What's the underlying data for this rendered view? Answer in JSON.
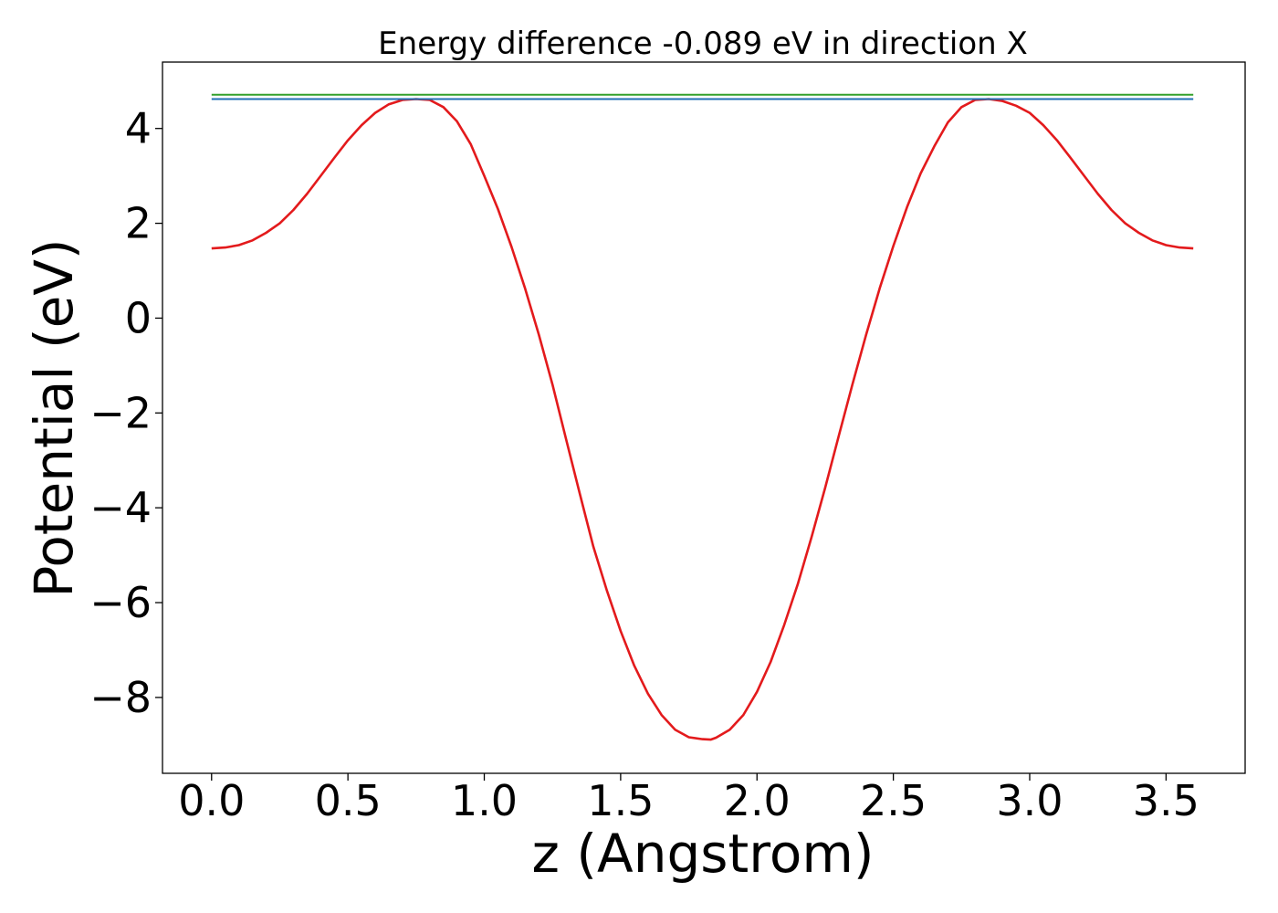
{
  "chart_data": {
    "type": "line",
    "title": "Energy difference -0.089 eV in direction X",
    "xlabel": "z (Angstrom)",
    "ylabel": "Potential (eV)",
    "xlim": [
      -0.18,
      3.79
    ],
    "ylim": [
      -9.6,
      5.4
    ],
    "xticks": [
      0.0,
      0.5,
      1.0,
      1.5,
      2.0,
      2.5,
      3.0,
      3.5
    ],
    "xtick_labels": [
      "0.0",
      "0.5",
      "1.0",
      "1.5",
      "2.0",
      "2.5",
      "3.0",
      "3.5"
    ],
    "yticks": [
      4,
      2,
      0,
      -2,
      -4,
      -6,
      -8
    ],
    "ytick_labels": [
      "4",
      "2",
      "0",
      "−2",
      "−4",
      "−6",
      "−8"
    ],
    "grid": false,
    "legend": "none",
    "series": [
      {
        "color": "#e31a1c",
        "x": [
          0.0,
          0.05,
          0.1,
          0.15,
          0.2,
          0.25,
          0.3,
          0.35,
          0.4,
          0.45,
          0.5,
          0.55,
          0.6,
          0.65,
          0.7,
          0.75,
          0.8,
          0.85,
          0.9,
          0.95,
          1.0,
          1.05,
          1.1,
          1.15,
          1.2,
          1.25,
          1.3,
          1.35,
          1.4,
          1.45,
          1.5,
          1.55,
          1.6,
          1.65,
          1.7,
          1.75,
          1.8,
          1.83,
          1.85,
          1.9,
          1.95,
          2.0,
          2.05,
          2.1,
          2.15,
          2.2,
          2.25,
          2.3,
          2.35,
          2.4,
          2.45,
          2.5,
          2.55,
          2.6,
          2.65,
          2.7,
          2.75,
          2.8,
          2.85,
          2.9,
          2.95,
          3.0,
          3.05,
          3.1,
          3.15,
          3.2,
          3.25,
          3.3,
          3.35,
          3.4,
          3.45,
          3.5,
          3.55,
          3.6
        ],
        "y": [
          1.47,
          1.49,
          1.54,
          1.64,
          1.8,
          2.0,
          2.28,
          2.62,
          3.0,
          3.38,
          3.75,
          4.07,
          4.33,
          4.51,
          4.6,
          4.62,
          4.6,
          4.45,
          4.15,
          3.67,
          3.0,
          2.3,
          1.5,
          0.62,
          -0.35,
          -1.4,
          -2.55,
          -3.7,
          -4.82,
          -5.75,
          -6.6,
          -7.33,
          -7.92,
          -8.37,
          -8.68,
          -8.84,
          -8.88,
          -8.89,
          -8.85,
          -8.68,
          -8.37,
          -7.88,
          -7.25,
          -6.47,
          -5.6,
          -4.62,
          -3.58,
          -2.48,
          -1.4,
          -0.35,
          0.63,
          1.52,
          2.34,
          3.05,
          3.62,
          4.13,
          4.45,
          4.6,
          4.62,
          4.58,
          4.48,
          4.33,
          4.07,
          3.75,
          3.38,
          3.0,
          2.62,
          2.28,
          2.0,
          1.8,
          1.64,
          1.54,
          1.49,
          1.47
        ]
      },
      {
        "color": "#1f6fb4",
        "x": [
          0.0,
          3.6
        ],
        "y": [
          4.62,
          4.62
        ]
      },
      {
        "color": "#33a02c",
        "x": [
          0.0,
          3.6
        ],
        "y": [
          4.71,
          4.71
        ]
      }
    ]
  }
}
